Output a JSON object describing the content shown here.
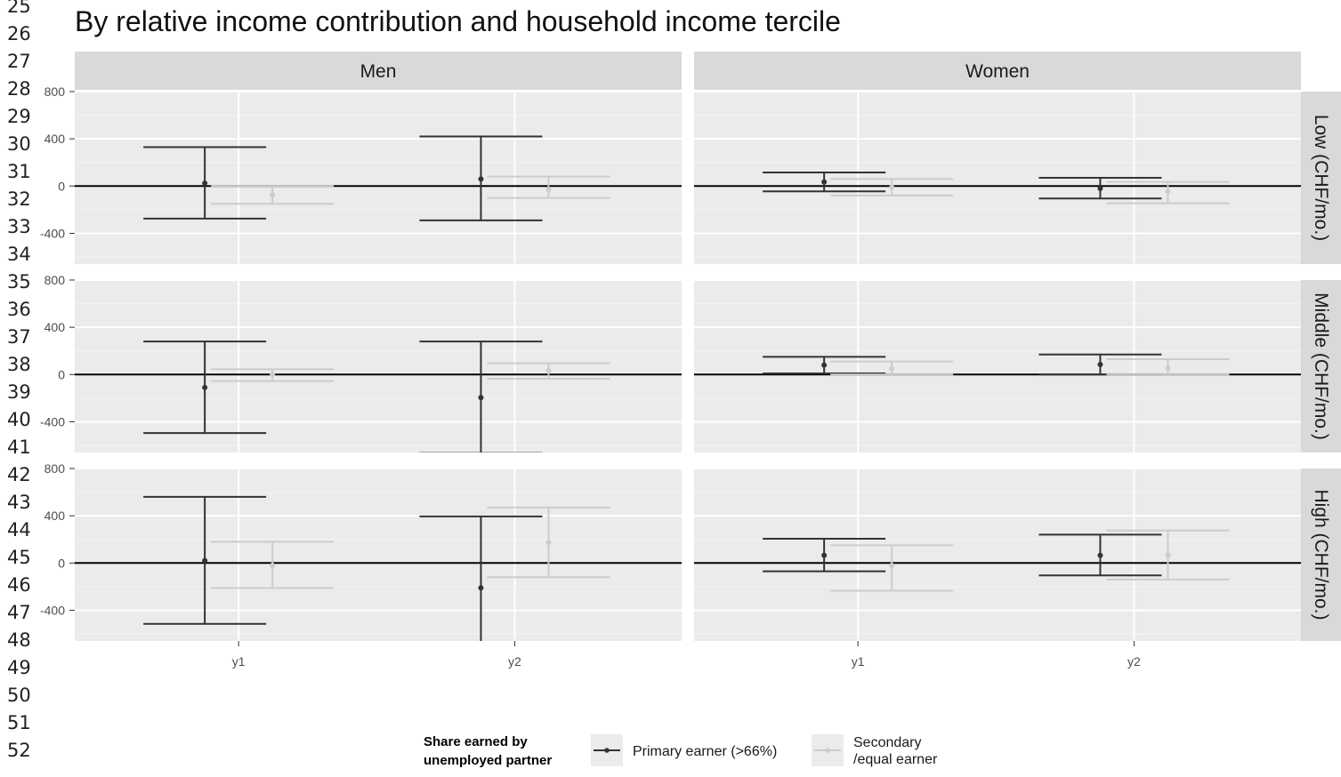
{
  "line_numbers": [
    "25",
    "26",
    "27",
    "28",
    "29",
    "30",
    "31",
    "32",
    "33",
    "34",
    "35",
    "36",
    "37",
    "38",
    "39",
    "40",
    "41",
    "42",
    "43",
    "44",
    "45",
    "46",
    "47",
    "48",
    "49",
    "50",
    "51",
    "52"
  ],
  "chart_data": {
    "type": "errorbar",
    "title": "By relative income contribution and household income tercile",
    "facet_columns": [
      "Men",
      "Women"
    ],
    "facet_rows": [
      "Low (CHF/mo.)",
      "Middle (CHF/mo.)",
      "High (CHF/mo.)"
    ],
    "categories": [
      "y1",
      "y2"
    ],
    "y_ticks": [
      800,
      400,
      0,
      -400
    ],
    "y_tick_labels": [
      "800",
      "400",
      "0",
      "-400"
    ],
    "ylim": [
      -660,
      800
    ],
    "reference_line": 0,
    "legend": {
      "title": "Share earned by unemployed partner",
      "title_lines": [
        "Share earned by",
        "unemployed partner"
      ],
      "placement": "bottom",
      "items": [
        {
          "label": "Primary earner (>66%)",
          "lines": [
            "Primary earner (>66%)"
          ],
          "color": "#333333"
        },
        {
          "label": "Secondary /equal earner",
          "lines": [
            "Secondary",
            "/equal earner"
          ],
          "color": "#cccccc"
        }
      ]
    },
    "colors": {
      "panel_bg": "#ebebeb",
      "strip_bg": "#d9d9d9",
      "grid_major": "#ffffff",
      "grid_minor": "#f4f4f4",
      "zero_line": "#000000",
      "primary": "#333333",
      "secondary": "#cccccc"
    },
    "series": [
      {
        "name": "Primary earner (>66%)",
        "panels": [
          {
            "row": "Low (CHF/mo.)",
            "col": "Men",
            "points": [
              {
                "x": "y1",
                "y": 25,
                "ymin": -275,
                "ymax": 330
              },
              {
                "x": "y2",
                "y": 60,
                "ymin": -290,
                "ymax": 420
              }
            ]
          },
          {
            "row": "Low (CHF/mo.)",
            "col": "Women",
            "points": [
              {
                "x": "y1",
                "y": 35,
                "ymin": -45,
                "ymax": 115
              },
              {
                "x": "y2",
                "y": -20,
                "ymin": -105,
                "ymax": 70
              }
            ]
          },
          {
            "row": "Middle (CHF/mo.)",
            "col": "Men",
            "points": [
              {
                "x": "y1",
                "y": -110,
                "ymin": -495,
                "ymax": 280
              },
              {
                "x": "y2",
                "y": -195,
                "ymin": -665,
                "ymax": 280
              }
            ]
          },
          {
            "row": "Middle (CHF/mo.)",
            "col": "Women",
            "points": [
              {
                "x": "y1",
                "y": 80,
                "ymin": 10,
                "ymax": 150
              },
              {
                "x": "y2",
                "y": 85,
                "ymin": 0,
                "ymax": 170
              }
            ]
          },
          {
            "row": "High (CHF/mo.)",
            "col": "Men",
            "points": [
              {
                "x": "y1",
                "y": 20,
                "ymin": -515,
                "ymax": 560
              },
              {
                "x": "y2",
                "y": -210,
                "ymin": -670,
                "ymax": 395
              }
            ]
          },
          {
            "row": "High (CHF/mo.)",
            "col": "Women",
            "points": [
              {
                "x": "y1",
                "y": 65,
                "ymin": -70,
                "ymax": 205
              },
              {
                "x": "y2",
                "y": 65,
                "ymin": -105,
                "ymax": 240
              }
            ]
          }
        ]
      },
      {
        "name": "Secondary /equal earner",
        "panels": [
          {
            "row": "Low (CHF/mo.)",
            "col": "Men",
            "points": [
              {
                "x": "y1",
                "y": -75,
                "ymin": -150,
                "ymax": 0
              },
              {
                "x": "y2",
                "y": -30,
                "ymin": -100,
                "ymax": 80
              }
            ]
          },
          {
            "row": "Low (CHF/mo.)",
            "col": "Women",
            "points": [
              {
                "x": "y1",
                "y": -10,
                "ymin": -80,
                "ymax": 60
              },
              {
                "x": "y2",
                "y": -45,
                "ymin": -145,
                "ymax": 35
              }
            ]
          },
          {
            "row": "Middle (CHF/mo.)",
            "col": "Men",
            "points": [
              {
                "x": "y1",
                "y": 0,
                "ymin": -55,
                "ymax": 45
              },
              {
                "x": "y2",
                "y": 35,
                "ymin": -35,
                "ymax": 95
              }
            ]
          },
          {
            "row": "Middle (CHF/mo.)",
            "col": "Women",
            "points": [
              {
                "x": "y1",
                "y": 50,
                "ymin": 0,
                "ymax": 110
              },
              {
                "x": "y2",
                "y": 55,
                "ymin": 0,
                "ymax": 130
              }
            ]
          },
          {
            "row": "High (CHF/mo.)",
            "col": "Men",
            "points": [
              {
                "x": "y1",
                "y": -20,
                "ymin": -210,
                "ymax": 180
              },
              {
                "x": "y2",
                "y": 175,
                "ymin": -120,
                "ymax": 470
              }
            ]
          },
          {
            "row": "High (CHF/mo.)",
            "col": "Women",
            "points": [
              {
                "x": "y1",
                "y": -20,
                "ymin": -235,
                "ymax": 150
              },
              {
                "x": "y2",
                "y": 65,
                "ymin": -140,
                "ymax": 275
              }
            ]
          }
        ]
      }
    ]
  }
}
